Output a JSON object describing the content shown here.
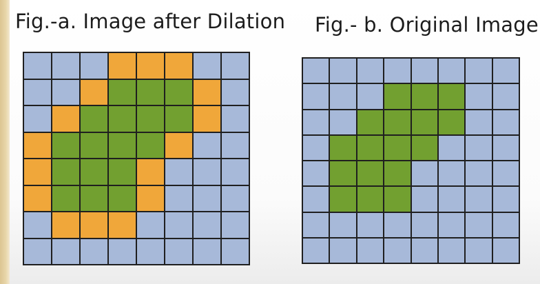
{
  "figure_a": {
    "caption": "Fig.-a. Image after Dilation",
    "rows": [
      "BBBOOOBB",
      "BBOGGGOB",
      "BOGGGGOB",
      "OGGGGOBB",
      "OGGGOBBB",
      "OGGGOBBB",
      "BOOOBBBB",
      "BBBBBBBB"
    ]
  },
  "figure_b": {
    "caption": "Fig.- b. Original Image",
    "rows": [
      "BBBBBBBB",
      "BBBGGGBB",
      "BBGGGGBB",
      "BGGGGBBB",
      "BGGGBBBB",
      "BGGGBBBB",
      "BBBBBBBB",
      "BBBBBBBB"
    ]
  },
  "legend_colors": {
    "B": "#a7b9d9",
    "G": "#72a030",
    "O": "#f0a73a"
  },
  "cell_kinds": {
    "B": "background",
    "G": "object",
    "O": "dilated"
  }
}
